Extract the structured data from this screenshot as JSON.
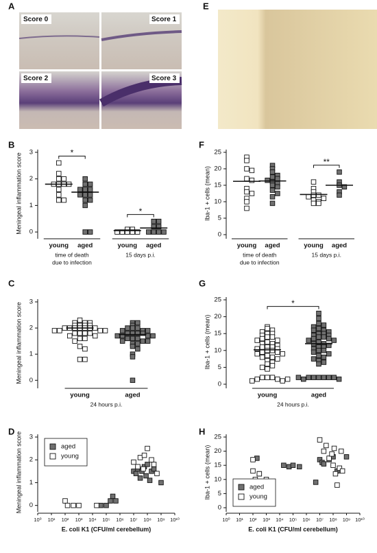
{
  "panel_labels": [
    "A",
    "B",
    "C",
    "D",
    "E",
    "F",
    "G",
    "H"
  ],
  "micrographs": [
    "Score 0",
    "Score 1",
    "Score 2",
    "Score 3"
  ],
  "chart_data": [
    {
      "type": "dotplot",
      "ylabel": "Meningeal inflammation score",
      "ylim": [
        -0.1,
        3
      ],
      "yticks": [
        0,
        1,
        2,
        3
      ],
      "group_labels": [
        [
          "time of death",
          "due to infection"
        ],
        [
          "15 days p.i."
        ]
      ],
      "groups": [
        {
          "name": "young",
          "cluster": 0,
          "fill": "#ffffff",
          "values": [
            2.6,
            2.2,
            2.0,
            2.0,
            1.8,
            1.8,
            1.8,
            1.8,
            1.6,
            1.4,
            1.2,
            1.2
          ],
          "mean": 1.8
        },
        {
          "name": "aged",
          "cluster": 0,
          "fill": "#707070",
          "values": [
            2.0,
            1.8,
            1.8,
            1.6,
            1.6,
            1.6,
            1.4,
            1.4,
            1.4,
            1.2,
            1.2,
            1.0,
            0,
            0
          ],
          "mean": 1.5
        },
        {
          "name": "young",
          "cluster": 1,
          "fill": "#ffffff",
          "values": [
            0.1,
            0.1,
            0,
            0,
            0,
            0,
            0
          ],
          "mean": 0.05
        },
        {
          "name": "aged",
          "cluster": 1,
          "fill": "#707070",
          "values": [
            0.4,
            0.4,
            0.2,
            0.2,
            0,
            0,
            0,
            0
          ],
          "mean": 0.15
        }
      ],
      "significance": [
        {
          "label": "*",
          "from": 0,
          "to": 1
        },
        {
          "label": "*",
          "from": 2,
          "to": 3
        }
      ]
    },
    {
      "type": "dotplot",
      "ylabel": "Iba-1 + cells (mean)",
      "ylim": [
        0,
        25
      ],
      "yticks": [
        0,
        5,
        10,
        15,
        20,
        25
      ],
      "group_labels": [
        [
          "time of death",
          "due to infection"
        ],
        [
          "15 days p.i."
        ]
      ],
      "groups": [
        {
          "name": "young",
          "cluster": 0,
          "fill": "#ffffff",
          "values": [
            23.5,
            22.5,
            20,
            19.5,
            17,
            16.5,
            14,
            13,
            12.5,
            11,
            10,
            8
          ],
          "mean": 16.2
        },
        {
          "name": "aged",
          "cluster": 0,
          "fill": "#707070",
          "values": [
            21,
            20,
            19,
            18,
            17.5,
            17,
            16.5,
            16,
            15.5,
            15,
            14.5,
            13.5,
            12.5,
            11.5,
            9.5
          ],
          "mean": 16.3
        },
        {
          "name": "young",
          "cluster": 1,
          "fill": "#ffffff",
          "values": [
            16,
            14,
            13,
            12,
            12,
            11.5,
            11,
            10.5,
            10,
            9.5,
            9.5
          ],
          "mean": 12.2
        },
        {
          "name": "aged",
          "cluster": 1,
          "fill": "#707070",
          "values": [
            19,
            16,
            15,
            14.5,
            13,
            12
          ],
          "mean": 15
        }
      ],
      "significance": [
        {
          "label": "**",
          "from": 2,
          "to": 3
        }
      ]
    },
    {
      "type": "dotplot",
      "ylabel": "Meningeal inflammation score",
      "ylim": [
        -0.15,
        3
      ],
      "yticks": [
        0,
        1,
        2,
        3
      ],
      "group_labels": [
        [
          "24 hours p.i."
        ]
      ],
      "groups": [
        {
          "name": "young",
          "cluster": 0,
          "fill": "#ffffff",
          "values": [
            2.3,
            2.2,
            2.2,
            2.2,
            2.1,
            2.1,
            2.1,
            2.1,
            2.0,
            2.0,
            2.0,
            2.0,
            2.0,
            2.0,
            2.0,
            1.9,
            1.9,
            1.9,
            1.9,
            1.8,
            1.8,
            1.8,
            1.8,
            1.7,
            1.7,
            1.6,
            1.6,
            1.5,
            1.3,
            1.2,
            0.8,
            0.8
          ],
          "mean": 2.0
        },
        {
          "name": "aged",
          "cluster": 0,
          "fill": "#707070",
          "values": [
            2.2,
            2.2,
            2.1,
            2.0,
            2.0,
            2.0,
            1.9,
            1.9,
            1.9,
            1.8,
            1.8,
            1.8,
            1.8,
            1.7,
            1.7,
            1.7,
            1.7,
            1.6,
            1.6,
            1.6,
            1.5,
            1.5,
            1.5,
            1.4,
            1.4,
            1.3,
            1.2,
            1.0,
            0.9,
            0
          ],
          "mean": 1.75
        }
      ],
      "significance": []
    },
    {
      "type": "dotplot",
      "ylabel": "Iba-1 + cells (mean)",
      "ylim": [
        0,
        25
      ],
      "yticks": [
        0,
        5,
        10,
        15,
        20,
        25
      ],
      "group_labels": [
        [
          "24 hours p.i."
        ]
      ],
      "groups": [
        {
          "name": "young",
          "cluster": 0,
          "fill": "#ffffff",
          "values": [
            17,
            16.5,
            16,
            15.5,
            15,
            15,
            14.5,
            14,
            14,
            13.5,
            13,
            13,
            12.5,
            12,
            12,
            11.5,
            11,
            11,
            11,
            10.5,
            10.5,
            10,
            10,
            9.5,
            9.5,
            9,
            9,
            8.5,
            8,
            8,
            7.5,
            7,
            6.5,
            6,
            5.5,
            5,
            4.5,
            2,
            2,
            2,
            1.5,
            1.5,
            1,
            1,
            1.5
          ],
          "mean": 10.2
        },
        {
          "name": "aged",
          "cluster": 0,
          "fill": "#707070",
          "values": [
            21,
            19.5,
            18,
            17.5,
            17,
            16.5,
            16,
            16,
            15.5,
            15,
            15,
            14.5,
            14.5,
            14,
            14,
            13.5,
            13.5,
            13,
            13,
            12.5,
            12,
            12,
            11.5,
            11,
            11,
            10.5,
            10,
            10,
            9.5,
            9,
            8.5,
            8,
            7.5,
            7,
            6.5,
            6,
            2,
            2,
            2,
            2,
            2,
            2,
            1.5,
            1.5,
            2
          ],
          "mean": 12
        }
      ],
      "significance": [
        {
          "label": "*",
          "from": 0,
          "to": 1
        }
      ]
    },
    {
      "type": "scatter",
      "ylabel": "Meningeal inflammation score",
      "xlabel": "E. coli K1 (CFU/ml cerebellum)",
      "xscale": "log",
      "legend": "upper left",
      "xlim": [
        1,
        10000000000
      ],
      "xticks": [
        {
          "value": 1,
          "label": "10⁰"
        },
        {
          "value": 10,
          "label": "10¹"
        },
        {
          "value": 100,
          "label": "10²"
        },
        {
          "value": 1000,
          "label": "10³"
        },
        {
          "value": 10000,
          "label": "10⁴"
        },
        {
          "value": 100000,
          "label": "10⁵"
        },
        {
          "value": 1000000,
          "label": "10⁶"
        },
        {
          "value": 10000000,
          "label": "10⁷"
        },
        {
          "value": 100000000,
          "label": "10⁸"
        },
        {
          "value": 1000000000,
          "label": "10⁹"
        },
        {
          "value": 10000000000,
          "label": "10¹⁰"
        }
      ],
      "ylim": [
        -0.1,
        3
      ],
      "yticks": [
        0,
        1,
        2,
        3
      ],
      "series": [
        {
          "name": "aged",
          "color": "#707070",
          "x": [
            100000,
            200000,
            300000,
            500000,
            40000,
            10000000,
            15000000,
            20000000,
            30000000,
            40000000,
            60000000,
            80000000,
            100000000,
            150000000,
            200000000,
            300000000,
            1000000000
          ],
          "values": [
            0,
            0.2,
            0.4,
            0.2,
            0,
            1.5,
            1.4,
            1.6,
            1.2,
            1.5,
            1.7,
            1.3,
            1.8,
            1.1,
            1.5,
            1.6,
            1.0
          ]
        },
        {
          "name": "young",
          "color": "#ffffff",
          "x": [
            100,
            150,
            400,
            1000,
            20000,
            10000000,
            20000000,
            30000000,
            50000000,
            60000000,
            100000000,
            200000000,
            300000000,
            500000000
          ],
          "values": [
            0.2,
            0,
            0,
            0,
            0,
            1.9,
            1.7,
            2.1,
            1.6,
            2.2,
            2.5,
            2.0,
            1.8,
            1.4
          ]
        }
      ]
    },
    {
      "type": "scatter",
      "ylabel": "Iba-1 + cells (mean)",
      "xlabel": "E. coli K1 (CFU/ml cerebellum)",
      "xscale": "log",
      "legend": "lower left",
      "xlim": [
        1,
        10000000000
      ],
      "xticks": [
        {
          "value": 1,
          "label": "10⁰"
        },
        {
          "value": 10,
          "label": "10¹"
        },
        {
          "value": 100,
          "label": "10²"
        },
        {
          "value": 1000,
          "label": "10³"
        },
        {
          "value": 10000,
          "label": "10⁴"
        },
        {
          "value": 100000,
          "label": "10⁵"
        },
        {
          "value": 1000000,
          "label": "10⁶"
        },
        {
          "value": 10000000,
          "label": "10⁷"
        },
        {
          "value": 100000000,
          "label": "10⁸"
        },
        {
          "value": 1000000000,
          "label": "10⁹"
        },
        {
          "value": 10000000000,
          "label": "10¹⁰"
        }
      ],
      "ylim": [
        0,
        25
      ],
      "yticks": [
        0,
        5,
        10,
        15,
        20,
        25
      ],
      "series": [
        {
          "name": "aged",
          "color": "#707070",
          "x": [
            200,
            300,
            20000,
            50000,
            100000,
            300000,
            5000000,
            10000000,
            15000000,
            20000000,
            50000000,
            100000000,
            200000000,
            1000000000
          ],
          "values": [
            17.5,
            12,
            15,
            14.5,
            15,
            14.5,
            9,
            17,
            16,
            15.5,
            17,
            18,
            13,
            18
          ]
        },
        {
          "name": "young",
          "color": "#ffffff",
          "x": [
            100,
            100,
            150,
            300,
            500,
            1000,
            10000000,
            20000000,
            30000000,
            50000000,
            80000000,
            100000000,
            150000000,
            200000000,
            300000000,
            400000000,
            500000000,
            120000000
          ],
          "values": [
            17,
            13,
            10,
            12,
            9,
            10,
            24,
            20,
            22,
            17.5,
            19,
            15,
            12,
            8,
            14,
            20,
            13,
            21
          ]
        }
      ]
    }
  ]
}
